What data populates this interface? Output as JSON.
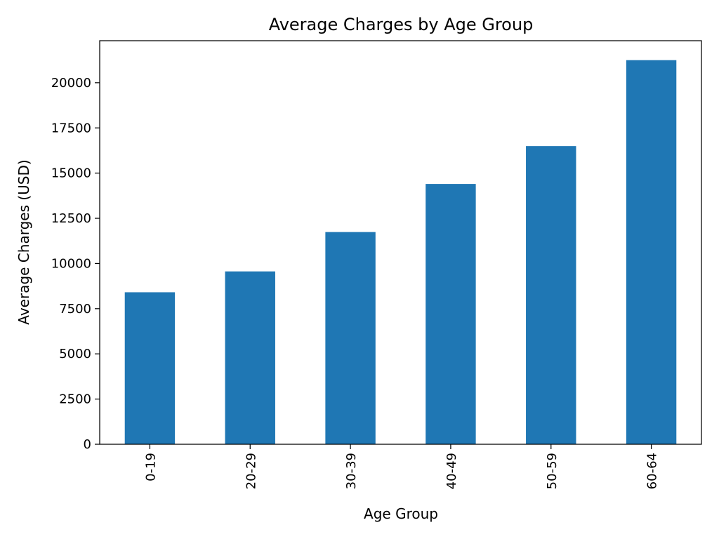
{
  "chart_data": {
    "type": "bar",
    "title": "Average Charges by Age Group",
    "xlabel": "Age Group",
    "ylabel": "Average Charges (USD)",
    "categories": [
      "0-19",
      "20-29",
      "30-39",
      "40-49",
      "50-59",
      "60-64"
    ],
    "values": [
      8408,
      9562,
      11739,
      14400,
      16495,
      21248
    ],
    "ylim": [
      0,
      22324
    ],
    "yticks": [
      0,
      2500,
      5000,
      7500,
      10000,
      12500,
      15000,
      17500,
      20000
    ],
    "bar_color": "#1f77b4",
    "grid": false,
    "legend": "none"
  }
}
